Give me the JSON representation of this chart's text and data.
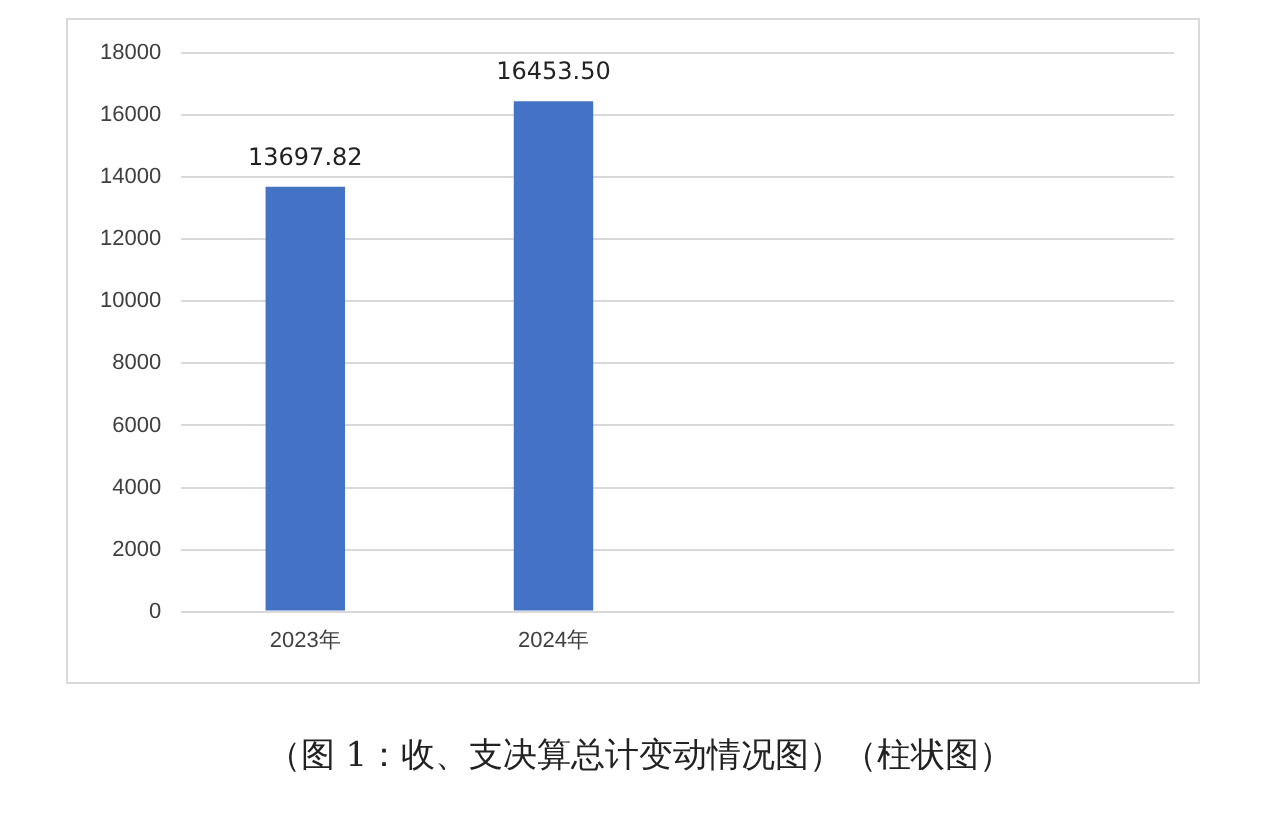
{
  "chart_data": {
    "type": "bar",
    "categories": [
      "2023年",
      "2024年",
      null,
      null
    ],
    "values": [
      13697.82,
      16453.5,
      null,
      null
    ],
    "color": "#4472c4",
    "ylim": [
      0,
      18000
    ],
    "yticks": [
      0,
      2000,
      4000,
      6000,
      8000,
      10000,
      12000,
      14000,
      16000,
      18000
    ],
    "grid": "y",
    "legend": false,
    "value_labels": [
      "13697.82",
      "16453.50",
      null,
      null
    ],
    "annotations": [
      "（图 1：收、支决算总计变动情况图）（柱状图）"
    ]
  }
}
